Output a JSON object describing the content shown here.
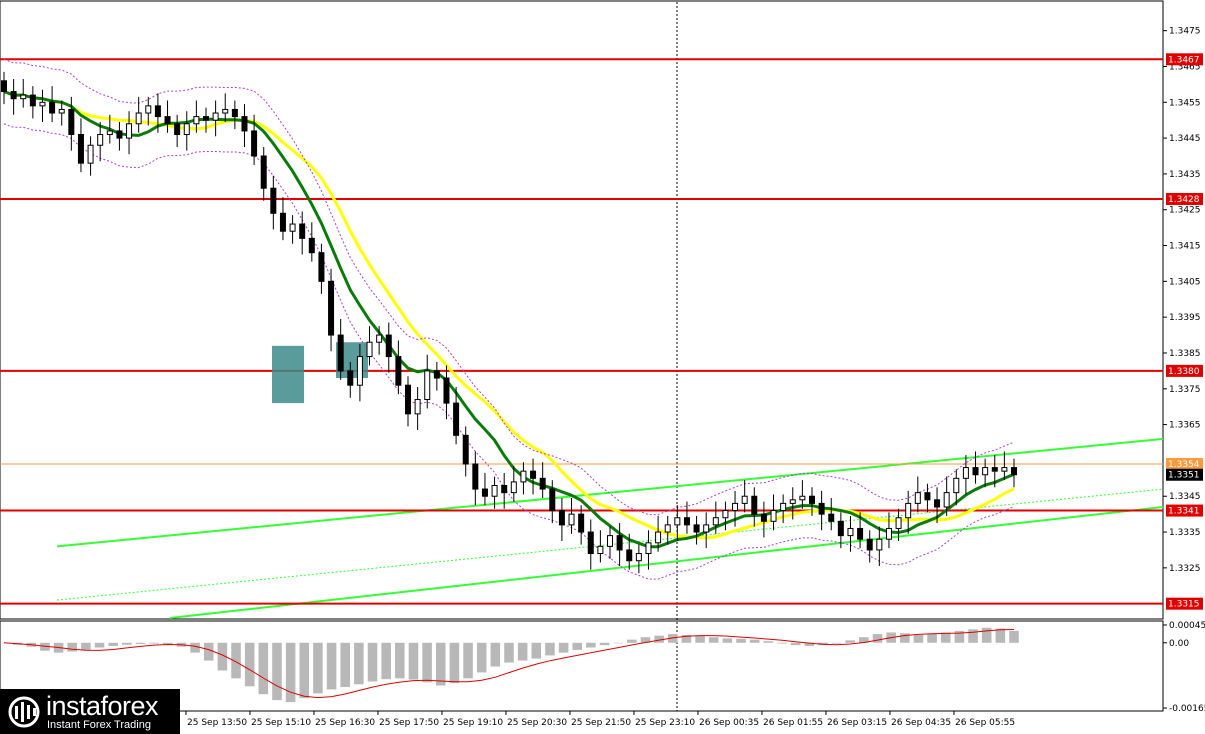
{
  "chart_data": {
    "type": "candlestick",
    "price_axis": {
      "ticks": [
        "1.3475",
        "1.3465",
        "1.3455",
        "1.3445",
        "1.3435",
        "1.3425",
        "1.3415",
        "1.3405",
        "1.3395",
        "1.3385",
        "1.3375",
        "1.3365",
        "1.3345",
        "1.3335",
        "1.3325"
      ],
      "range": [
        1.3311,
        1.3483
      ]
    },
    "levels": [
      {
        "label": "1.3467",
        "value": 1.3467,
        "color": "#e00000"
      },
      {
        "label": "1.3428",
        "value": 1.3428,
        "color": "#e00000"
      },
      {
        "label": "1.3380",
        "value": 1.338,
        "color": "#e00000"
      },
      {
        "label": "1.3341",
        "value": 1.3341,
        "color": "#e00000"
      },
      {
        "label": "1.3315",
        "value": 1.3315,
        "color": "#e00000"
      }
    ],
    "current_price": {
      "label": "1.3351",
      "value": 1.3351
    },
    "reference_price": {
      "label": "1.3354",
      "value": 1.3354,
      "color": "#ff9a3c"
    },
    "time_axis": [
      "25 Sep 13:50",
      "25 Sep 15:10",
      "25 Sep 16:30",
      "25 Sep 17:50",
      "25 Sep 19:10",
      "25 Sep 20:30",
      "25 Sep 21:50",
      "25 Sep 23:10",
      "26 Sep 00:35",
      "26 Sep 01:55",
      "26 Sep 03:15",
      "26 Sep 04:35",
      "26 Sep 05:55"
    ],
    "candles_close": [
      1.3458,
      1.3456,
      1.3457,
      1.3454,
      1.3455,
      1.3452,
      1.3453,
      1.3446,
      1.3438,
      1.3443,
      1.3446,
      1.3447,
      1.3445,
      1.3449,
      1.3452,
      1.3454,
      1.3451,
      1.3449,
      1.3446,
      1.3449,
      1.3451,
      1.345,
      1.3452,
      1.3453,
      1.3451,
      1.3447,
      1.344,
      1.3431,
      1.3424,
      1.3419,
      1.3421,
      1.3417,
      1.3413,
      1.3405,
      1.339,
      1.338,
      1.3376,
      1.3384,
      1.3388,
      1.339,
      1.3384,
      1.3376,
      1.3368,
      1.3372,
      1.338,
      1.3378,
      1.3371,
      1.3362,
      1.3354,
      1.3347,
      1.3345,
      1.3348,
      1.3346,
      1.3349,
      1.3352,
      1.335,
      1.3347,
      1.3341,
      1.3337,
      1.334,
      1.3335,
      1.3329,
      1.3331,
      1.3334,
      1.333,
      1.3327,
      1.3329,
      1.3332,
      1.3335,
      1.3337,
      1.3339,
      1.3337,
      1.3335,
      1.3337,
      1.3339,
      1.3341,
      1.3343,
      1.3345,
      1.334,
      1.3338,
      1.3341,
      1.3343,
      1.3344,
      1.3345,
      1.3343,
      1.334,
      1.3338,
      1.3334,
      1.3336,
      1.3333,
      1.333,
      1.3333,
      1.3336,
      1.3339,
      1.3343,
      1.3346,
      1.3344,
      1.3342,
      1.3346,
      1.335,
      1.3353,
      1.3351,
      1.3353,
      1.3352,
      1.3353,
      1.3351
    ],
    "ma_fast_color": "#0a7a0a",
    "ma_slow_color": "#ffff00",
    "channel": {
      "color": "#33ff33",
      "lines": [
        [
          1.3331,
          1.3361
        ],
        [
          1.3311,
          1.3342
        ]
      ]
    },
    "highlight_color": "#3d8a8a",
    "oscillator": {
      "ticks": [
        "0.00045",
        "0.00",
        "-0.00165"
      ],
      "range": [
        -0.0017,
        0.0005
      ],
      "values": [
        0.0,
        -5e-05,
        -0.0001,
        -0.0002,
        -0.00025,
        -0.00022,
        -0.00018,
        -0.00012,
        -8e-05,
        -5e-05,
        -3e-05,
        -2e-05,
        -4e-05,
        -0.0001,
        -0.00025,
        -0.00045,
        -0.0007,
        -0.0009,
        -0.0011,
        -0.0013,
        -0.00145,
        -0.0015,
        -0.0014,
        -0.00128,
        -0.00118,
        -0.00112,
        -0.00105,
        -0.00098,
        -0.00092,
        -0.0009,
        -0.00093,
        -0.001,
        -0.00108,
        -0.00102,
        -0.0009,
        -0.00075,
        -0.0006,
        -0.0005,
        -0.00045,
        -0.0004,
        -0.00032,
        -0.00025,
        -0.00018,
        -0.00012,
        -6e-05,
        0.0,
        8e-05,
        0.00014,
        0.00018,
        0.00022,
        0.0002,
        0.00017,
        0.00014,
        0.00011,
        0.0001,
        8e-05,
        4e-05,
        -2e-05,
        -6e-05,
        -8e-05,
        -6e-05,
        -2e-05,
        6e-05,
        0.00014,
        0.00022,
        0.00026,
        0.00024,
        0.0002,
        0.00022,
        0.00026,
        0.0003,
        0.00034,
        0.00038,
        0.00036,
        0.0003
      ],
      "signal_color": "#e00000"
    }
  },
  "brand": {
    "name": "instaforex",
    "tagline": "Instant Forex Trading"
  }
}
